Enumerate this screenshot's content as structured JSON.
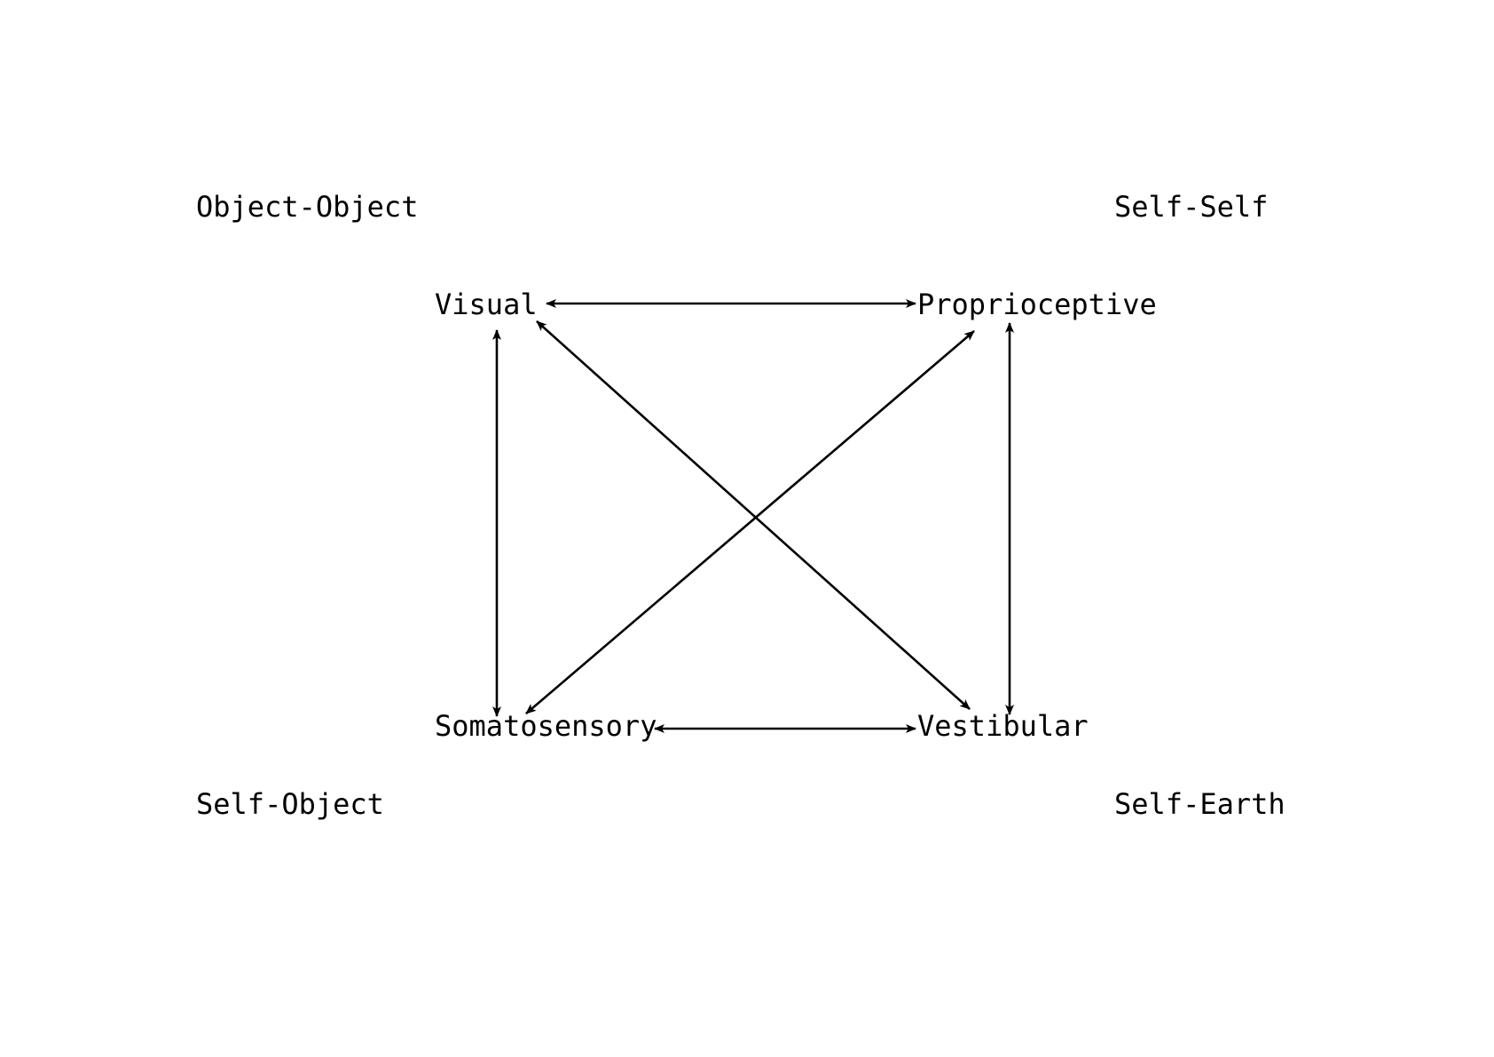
{
  "diagram": {
    "quadrants": {
      "top_left": "Object-Object",
      "top_right": "Self-Self",
      "bottom_left": "Self-Object",
      "bottom_right": "Self-Earth"
    },
    "nodes": [
      {
        "id": "visual",
        "label": "Visual"
      },
      {
        "id": "proprioceptive",
        "label": "Proprioceptive"
      },
      {
        "id": "somatosensory",
        "label": "Somatosensory"
      },
      {
        "id": "vestibular",
        "label": "Vestibular"
      }
    ],
    "edges": [
      {
        "from": "visual",
        "to": "proprioceptive",
        "direction": "both"
      },
      {
        "from": "visual",
        "to": "somatosensory",
        "direction": "both"
      },
      {
        "from": "visual",
        "to": "vestibular",
        "direction": "both"
      },
      {
        "from": "proprioceptive",
        "to": "somatosensory",
        "direction": "both"
      },
      {
        "from": "proprioceptive",
        "to": "vestibular",
        "direction": "both"
      },
      {
        "from": "somatosensory",
        "to": "vestibular",
        "direction": "both"
      }
    ],
    "colors": {
      "ink": "#000000",
      "background": "#ffffff"
    }
  }
}
